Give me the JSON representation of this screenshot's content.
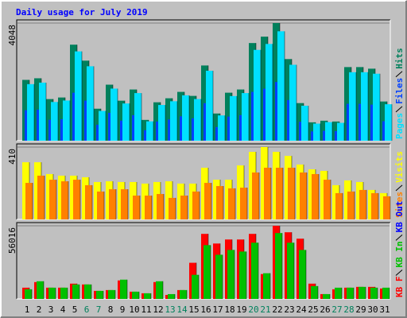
{
  "chart_data": {
    "type": "bar",
    "title": "Daily usage for July 2019",
    "categories": [
      "1",
      "2",
      "3",
      "4",
      "5",
      "6",
      "7",
      "8",
      "9",
      "10",
      "11",
      "12",
      "13",
      "14",
      "15",
      "16",
      "17",
      "18",
      "19",
      "20",
      "21",
      "22",
      "23",
      "24",
      "25",
      "26",
      "27",
      "28",
      "29",
      "30",
      "31"
    ],
    "category_colors": [
      "#000000",
      "#000000",
      "#000000",
      "#000000",
      "#000000",
      "#00805c",
      "#00805c",
      "#000000",
      "#000000",
      "#000000",
      "#000000",
      "#000000",
      "#00805c",
      "#00805c",
      "#000000",
      "#000000",
      "#000000",
      "#000000",
      "#000000",
      "#00805c",
      "#00805c",
      "#000000",
      "#000000",
      "#000000",
      "#000000",
      "#000000",
      "#00805c",
      "#00805c",
      "#000000",
      "#000000",
      "#000000"
    ],
    "panels": [
      {
        "ylim": [
          0,
          4048
        ],
        "yticks": [
          4048
        ],
        "legend_reversed": true,
        "series": [
          {
            "name": "Hits",
            "color": "#00805c",
            "values": [
              2093,
              2148,
              1432,
              1487,
              3304,
              2754,
              1101,
              1928,
              1377,
              1762,
              716,
              1322,
              1460,
              1680,
              1542,
              2588,
              936,
              1652,
              1762,
              3360,
              3580,
              4048,
              2809,
              1294,
              633,
              688,
              661,
              2533,
              2533,
              2478,
              1349
            ]
          },
          {
            "name": "Files",
            "color": "#0040ff",
            "values": [
              1050,
              1070,
              720,
              740,
              1650,
              1380,
              550,
              960,
              690,
              880,
              360,
              660,
              730,
              840,
              770,
              1290,
              470,
              830,
              880,
              1680,
              1790,
              2020,
              1400,
              650,
              320,
              340,
              330,
              1270,
              1270,
              1240,
              670
            ]
          },
          {
            "name": "Pages",
            "color": "#00e0ff",
            "values": [
              1946,
              1998,
              1332,
              1383,
              3073,
              2561,
              1024,
              1793,
              1281,
              1639,
              666,
              1229,
              1358,
              1562,
              1434,
              2407,
              870,
              1536,
              1639,
              3125,
              3329,
              3765,
              2612,
              1203,
              589,
              640,
              615,
              2356,
              2356,
              2305,
              1255
            ]
          }
        ]
      },
      {
        "ylim": [
          0,
          410
        ],
        "yticks": [
          410
        ],
        "legend_reversed": true,
        "series": [
          {
            "name": "Visits",
            "color": "#ffff00",
            "values": [
              324,
              324,
              257,
              248,
              248,
              239,
              212,
              216,
              212,
              212,
              203,
              212,
              216,
              203,
              203,
              293,
              225,
              225,
              306,
              383,
              410,
              383,
              360,
              311,
              284,
              275,
              194,
              221,
              212,
              167,
              149
            ]
          },
          {
            "name": "Sites",
            "color": "#ff8000",
            "values": [
              207,
              248,
              225,
              216,
              225,
              194,
              158,
              171,
              171,
              135,
              135,
              144,
              122,
              135,
              158,
              207,
              189,
              176,
              180,
              266,
              293,
              293,
              293,
              266,
              257,
              225,
              149,
              158,
              167,
              149,
              131
            ]
          }
        ]
      },
      {
        "ylim": [
          0,
          56016
        ],
        "yticks": [
          56016
        ],
        "legend_reversed": false,
        "series": [
          {
            "name": "KB F",
            "color": "#ff0000",
            "values": [
              8610,
              12900,
              8610,
              8610,
              11700,
              11070,
              6150,
              6765,
              14145,
              5535,
              4305,
              12915,
              3075,
              6765,
              27675,
              49815,
              42435,
              45510,
              45510,
              49815,
              19065,
              56016,
              51045,
              46125,
              11685,
              3690,
              7380,
              8610,
              9225,
              9225,
              7995
            ]
          },
          {
            "name": "KB In",
            "color": "#00c000",
            "values": [
              7380,
              13530,
              8610,
              8610,
              11070,
              11070,
              6150,
              6765,
              14760,
              5535,
              4305,
              13530,
              3690,
              6765,
              18450,
              41205,
              33825,
              37515,
              36285,
              43050,
              19680,
              50430,
              43050,
              37515,
              9840,
              3690,
              8610,
              8610,
              9225,
              8610,
              8610
            ]
          },
          {
            "name": "KB Out",
            "color": "#0000ff",
            "values": [
              0,
              0,
              0,
              0,
              0,
              0,
              0,
              0,
              0,
              0,
              0,
              0,
              0,
              0,
              0,
              0,
              0,
              0,
              0,
              0,
              0,
              0,
              0,
              0,
              0,
              0,
              0,
              0,
              0,
              0,
              0
            ]
          }
        ]
      }
    ]
  }
}
